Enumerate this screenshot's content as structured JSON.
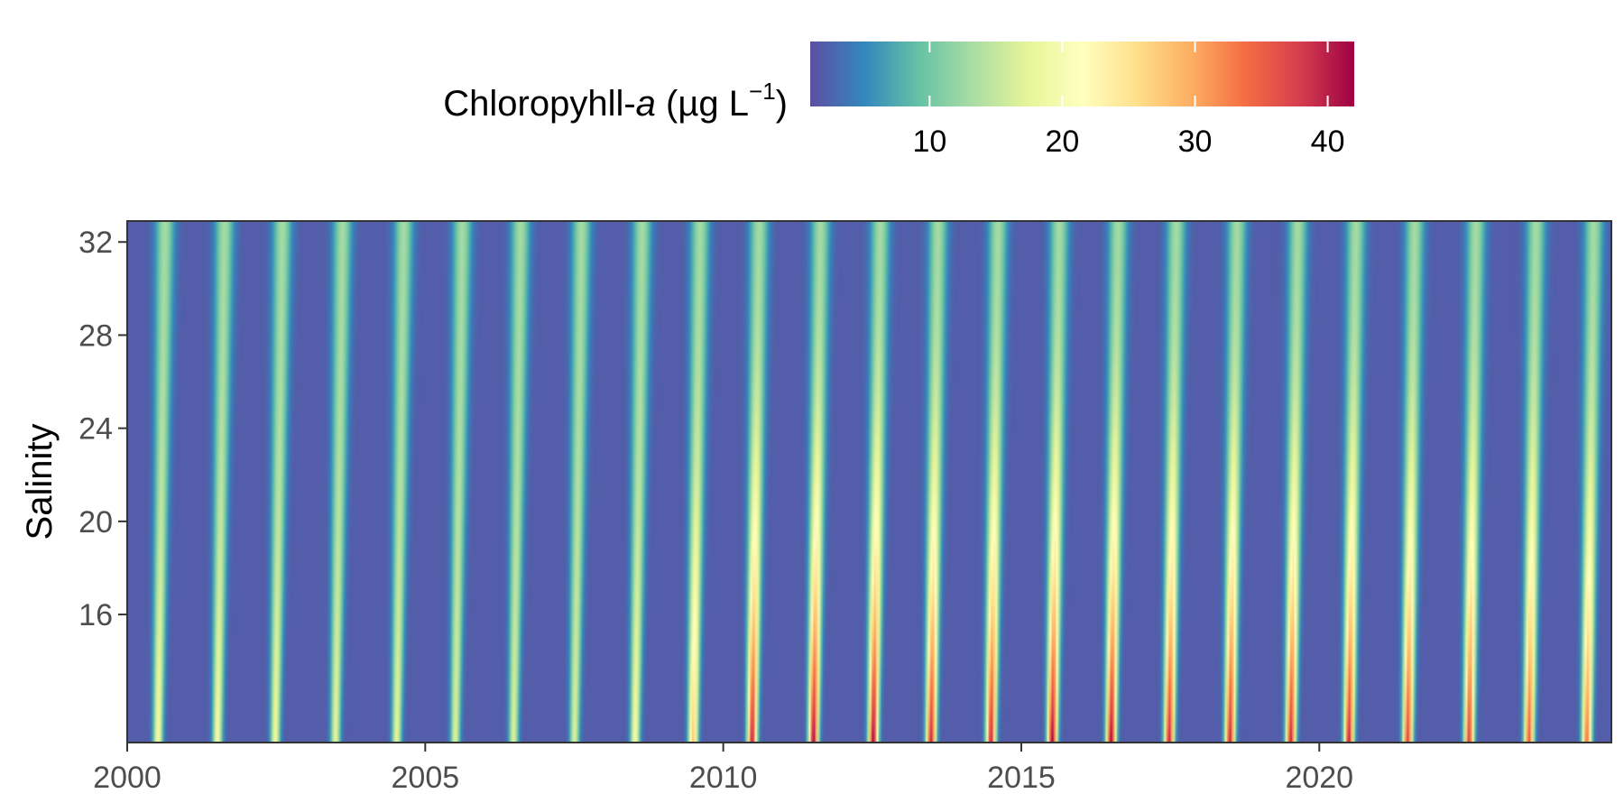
{
  "chart_data": {
    "type": "heatmap",
    "title": "",
    "xlabel": "",
    "ylabel": "Salinity",
    "xlim": [
      2000,
      2024.9
    ],
    "ylim": [
      10.5,
      32.9
    ],
    "x_ticks": [
      2000,
      2005,
      2010,
      2015,
      2020
    ],
    "y_ticks": [
      16,
      20,
      24,
      28,
      32
    ],
    "x_tick_labels": [
      "2000",
      "2005",
      "2010",
      "2015",
      "2020"
    ],
    "y_tick_labels": [
      "16",
      "20",
      "24",
      "28",
      "32"
    ],
    "grid": false,
    "colorbar": {
      "title_main": "Chloropyhll-",
      "title_italic": "a",
      "title_unit": " (µg L",
      "title_sup": "−1",
      "title_close": ")",
      "range": [
        1,
        42
      ],
      "ticks": [
        10,
        20,
        30,
        40
      ],
      "tick_labels": [
        "10",
        "20",
        "30",
        "40"
      ],
      "palette": "Spectral (reversed)",
      "position": "top"
    },
    "colors": [
      "#5e4fa2",
      "#3288bd",
      "#66c2a5",
      "#abdda4",
      "#e6f598",
      "#ffffbf",
      "#fee08b",
      "#fdae61",
      "#f46d43",
      "#d53e4f",
      "#9e0142"
    ],
    "value_model": {
      "description": "Annual chlorophyll-a blooms (one per year), strongest at low salinity; peaks intensify from 2010 onward",
      "year_peak_values": [
        {
          "year": 2000,
          "low_salinity_peak": 20
        },
        {
          "year": 2001,
          "low_salinity_peak": 20
        },
        {
          "year": 2002,
          "low_salinity_peak": 19
        },
        {
          "year": 2003,
          "low_salinity_peak": 18
        },
        {
          "year": 2004,
          "low_salinity_peak": 18
        },
        {
          "year": 2005,
          "low_salinity_peak": 17
        },
        {
          "year": 2006,
          "low_salinity_peak": 17
        },
        {
          "year": 2007,
          "low_salinity_peak": 17
        },
        {
          "year": 2008,
          "low_salinity_peak": 20
        },
        {
          "year": 2009,
          "low_salinity_peak": 28
        },
        {
          "year": 2010,
          "low_salinity_peak": 40
        },
        {
          "year": 2011,
          "low_salinity_peak": 42
        },
        {
          "year": 2012,
          "low_salinity_peak": 42
        },
        {
          "year": 2013,
          "low_salinity_peak": 40
        },
        {
          "year": 2014,
          "low_salinity_peak": 40
        },
        {
          "year": 2015,
          "low_salinity_peak": 42
        },
        {
          "year": 2016,
          "low_salinity_peak": 42
        },
        {
          "year": 2017,
          "low_salinity_peak": 40
        },
        {
          "year": 2018,
          "low_salinity_peak": 40
        },
        {
          "year": 2019,
          "low_salinity_peak": 40
        },
        {
          "year": 2020,
          "low_salinity_peak": 40
        },
        {
          "year": 2021,
          "low_salinity_peak": 38
        },
        {
          "year": 2022,
          "low_salinity_peak": 38
        },
        {
          "year": 2023,
          "low_salinity_peak": 36
        },
        {
          "year": 2024,
          "low_salinity_peak": 34
        }
      ],
      "high_salinity_peak": 13,
      "background": 2
    }
  }
}
